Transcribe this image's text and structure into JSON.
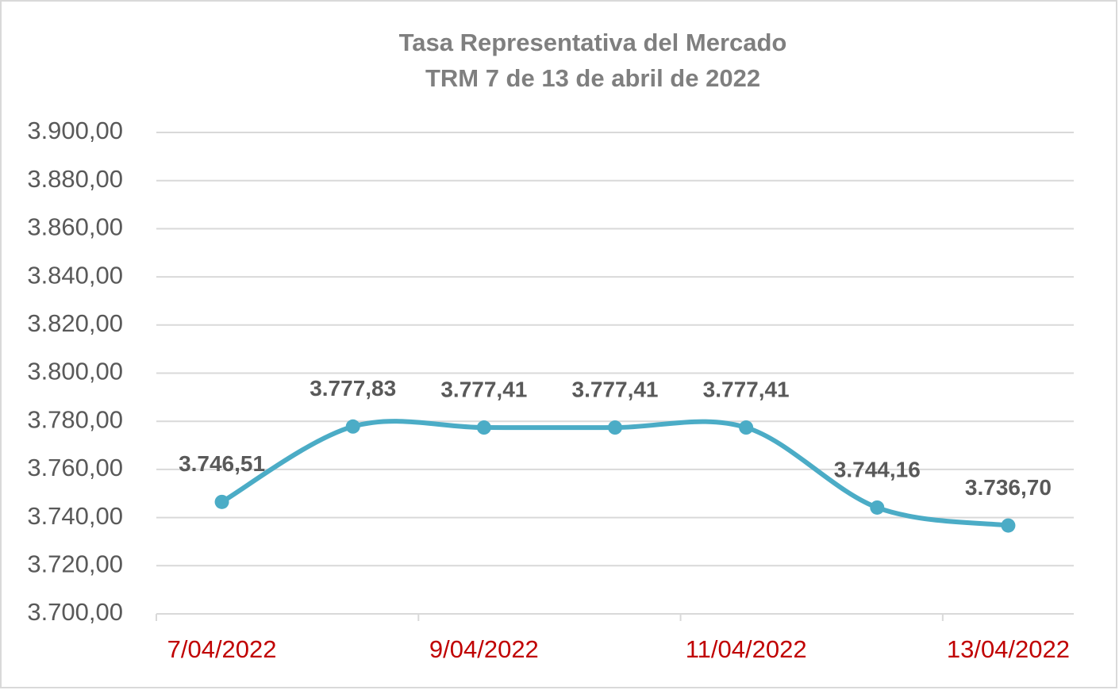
{
  "chart_data": {
    "type": "line",
    "title": [
      "Tasa Representativa del Mercado",
      "TRM  7 de 13 de abril de 2022"
    ],
    "categories": [
      "7/04/2022",
      null,
      "9/04/2022",
      null,
      "11/04/2022",
      null,
      "13/04/2022"
    ],
    "series": [
      {
        "color": "#4bacc6",
        "values": [
          3746.51,
          3777.83,
          3777.41,
          3777.41,
          3777.41,
          3744.16,
          3736.7
        ],
        "value_labels": [
          "3.746,51",
          "3.777,83",
          "3.777,41",
          "3.777,41",
          "3.777,41",
          "3.744,16",
          "3.736,70"
        ]
      }
    ],
    "ylim": [
      3700,
      3900
    ],
    "yticks": [
      {
        "value": 3700,
        "label": "3.700,00"
      },
      {
        "value": 3720,
        "label": "3.720,00"
      },
      {
        "value": 3740,
        "label": "3.740,00"
      },
      {
        "value": 3760,
        "label": "3.760,00"
      },
      {
        "value": 3780,
        "label": "3.780,00"
      },
      {
        "value": 3800,
        "label": "3.800,00"
      },
      {
        "value": 3820,
        "label": "3.820,00"
      },
      {
        "value": 3840,
        "label": "3.840,00"
      },
      {
        "value": 3860,
        "label": "3.860,00"
      },
      {
        "value": 3880,
        "label": "3.880,00"
      },
      {
        "value": 3900,
        "label": "3.900,00"
      }
    ],
    "grid": true,
    "smooth": true,
    "markers": true
  }
}
